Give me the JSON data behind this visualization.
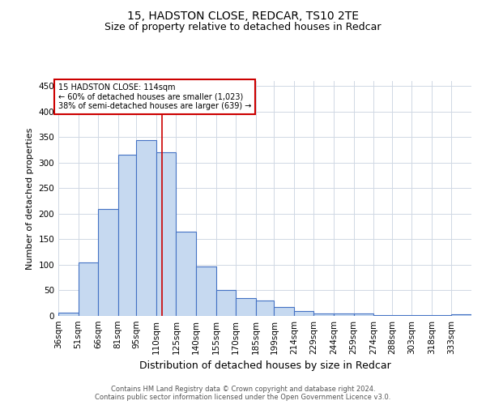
{
  "title1": "15, HADSTON CLOSE, REDCAR, TS10 2TE",
  "title2": "Size of property relative to detached houses in Redcar",
  "xlabel": "Distribution of detached houses by size in Redcar",
  "ylabel": "Number of detached properties",
  "footer1": "Contains HM Land Registry data © Crown copyright and database right 2024.",
  "footer2": "Contains public sector information licensed under the Open Government Licence v3.0.",
  "annotation_line1": "15 HADSTON CLOSE: 114sqm",
  "annotation_line2": "← 60% of detached houses are smaller (1,023)",
  "annotation_line3": "38% of semi-detached houses are larger (639) →",
  "property_size": 114,
  "categories": [
    "36sqm",
    "51sqm",
    "66sqm",
    "81sqm",
    "95sqm",
    "110sqm",
    "125sqm",
    "140sqm",
    "155sqm",
    "170sqm",
    "185sqm",
    "199sqm",
    "214sqm",
    "229sqm",
    "244sqm",
    "259sqm",
    "274sqm",
    "288sqm",
    "303sqm",
    "318sqm",
    "333sqm"
  ],
  "bin_edges": [
    36,
    51,
    66,
    81,
    95,
    110,
    125,
    140,
    155,
    170,
    185,
    199,
    214,
    229,
    244,
    259,
    274,
    288,
    303,
    318,
    333
  ],
  "bin_widths": [
    15,
    15,
    15,
    14,
    15,
    15,
    15,
    15,
    15,
    15,
    14,
    15,
    15,
    15,
    15,
    15,
    14,
    15,
    15,
    15,
    15
  ],
  "values": [
    6,
    105,
    210,
    315,
    345,
    320,
    165,
    97,
    50,
    35,
    30,
    18,
    10,
    5,
    5,
    4,
    2,
    1,
    2,
    1,
    3
  ],
  "bar_facecolor": "#c6d9f0",
  "bar_edgecolor": "#4472c4",
  "bar_linewidth": 0.8,
  "vline_color": "#cc0000",
  "vline_x": 114,
  "annotation_box_edgecolor": "#cc0000",
  "grid_color": "#d0d8e4",
  "background_color": "#ffffff",
  "ylim": [
    0,
    460
  ],
  "yticks": [
    0,
    50,
    100,
    150,
    200,
    250,
    300,
    350,
    400,
    450
  ],
  "title_fontsize": 10,
  "subtitle_fontsize": 9,
  "ylabel_fontsize": 8,
  "xlabel_fontsize": 9,
  "tick_fontsize": 7.5,
  "annotation_fontsize": 7,
  "footer_fontsize": 6
}
